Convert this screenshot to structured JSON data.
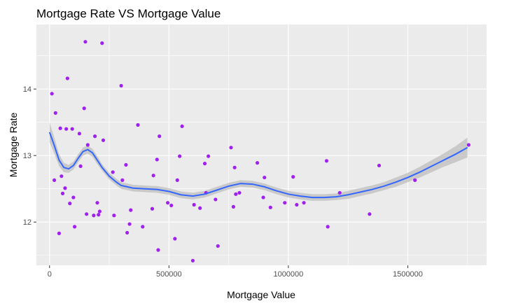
{
  "colors": {
    "panel_bg": "#EBEBEB",
    "grid_major": "#FFFFFF",
    "point": "#A020F0",
    "smooth_line": "#3366FF",
    "ribbon": "#BEBEBE",
    "tick_text": "#4D4D4D"
  },
  "chart_data": {
    "type": "scatter",
    "title": "Mortgage Rate VS Mortgage Value",
    "xlabel": "Mortgage Value",
    "ylabel": "Mortgage Rate",
    "xlim": [
      -55000,
      1830000
    ],
    "ylim": [
      11.35,
      14.97
    ],
    "x_ticks": [
      0,
      500000,
      1000000,
      1500000
    ],
    "x_tick_labels": [
      "0",
      "500000",
      "1000000",
      "1500000"
    ],
    "y_ticks": [
      12,
      13,
      14
    ],
    "y_tick_labels": [
      "12",
      "13",
      "14"
    ],
    "grid": true,
    "points": [
      {
        "x": 10000,
        "y": 13.93
      },
      {
        "x": 25000,
        "y": 13.64
      },
      {
        "x": 20000,
        "y": 12.63
      },
      {
        "x": 40000,
        "y": 11.83
      },
      {
        "x": 45000,
        "y": 13.41
      },
      {
        "x": 50000,
        "y": 12.69
      },
      {
        "x": 55000,
        "y": 12.43
      },
      {
        "x": 65000,
        "y": 12.51
      },
      {
        "x": 70000,
        "y": 13.4
      },
      {
        "x": 75000,
        "y": 14.16
      },
      {
        "x": 85000,
        "y": 12.28
      },
      {
        "x": 95000,
        "y": 13.4
      },
      {
        "x": 100000,
        "y": 12.37
      },
      {
        "x": 105000,
        "y": 11.93
      },
      {
        "x": 125000,
        "y": 13.33
      },
      {
        "x": 130000,
        "y": 12.84
      },
      {
        "x": 145000,
        "y": 13.71
      },
      {
        "x": 150000,
        "y": 14.71
      },
      {
        "x": 155000,
        "y": 12.12
      },
      {
        "x": 160000,
        "y": 13.16
      },
      {
        "x": 185000,
        "y": 12.1
      },
      {
        "x": 190000,
        "y": 13.29
      },
      {
        "x": 200000,
        "y": 12.29
      },
      {
        "x": 205000,
        "y": 12.11
      },
      {
        "x": 210000,
        "y": 12.16
      },
      {
        "x": 220000,
        "y": 14.69
      },
      {
        "x": 225000,
        "y": 13.23
      },
      {
        "x": 265000,
        "y": 12.75
      },
      {
        "x": 270000,
        "y": 12.1
      },
      {
        "x": 300000,
        "y": 14.05
      },
      {
        "x": 305000,
        "y": 12.63
      },
      {
        "x": 320000,
        "y": 12.86
      },
      {
        "x": 325000,
        "y": 11.84
      },
      {
        "x": 335000,
        "y": 11.97
      },
      {
        "x": 340000,
        "y": 12.18
      },
      {
        "x": 370000,
        "y": 13.46
      },
      {
        "x": 390000,
        "y": 11.93
      },
      {
        "x": 430000,
        "y": 12.2
      },
      {
        "x": 435000,
        "y": 12.7
      },
      {
        "x": 450000,
        "y": 12.94
      },
      {
        "x": 455000,
        "y": 11.58
      },
      {
        "x": 460000,
        "y": 13.29
      },
      {
        "x": 495000,
        "y": 12.29
      },
      {
        "x": 510000,
        "y": 12.25
      },
      {
        "x": 525000,
        "y": 11.75
      },
      {
        "x": 535000,
        "y": 12.63
      },
      {
        "x": 545000,
        "y": 12.99
      },
      {
        "x": 555000,
        "y": 13.44
      },
      {
        "x": 600000,
        "y": 11.42
      },
      {
        "x": 605000,
        "y": 12.26
      },
      {
        "x": 630000,
        "y": 12.21
      },
      {
        "x": 650000,
        "y": 12.88
      },
      {
        "x": 655000,
        "y": 12.44
      },
      {
        "x": 665000,
        "y": 12.99
      },
      {
        "x": 695000,
        "y": 12.34
      },
      {
        "x": 705000,
        "y": 11.64
      },
      {
        "x": 760000,
        "y": 13.12
      },
      {
        "x": 770000,
        "y": 12.23
      },
      {
        "x": 775000,
        "y": 12.82
      },
      {
        "x": 780000,
        "y": 12.42
      },
      {
        "x": 795000,
        "y": 12.44
      },
      {
        "x": 870000,
        "y": 12.89
      },
      {
        "x": 895000,
        "y": 12.37
      },
      {
        "x": 900000,
        "y": 12.67
      },
      {
        "x": 925000,
        "y": 12.22
      },
      {
        "x": 985000,
        "y": 12.29
      },
      {
        "x": 1020000,
        "y": 12.68
      },
      {
        "x": 1035000,
        "y": 12.26
      },
      {
        "x": 1065000,
        "y": 12.29
      },
      {
        "x": 1160000,
        "y": 12.92
      },
      {
        "x": 1165000,
        "y": 11.93
      },
      {
        "x": 1215000,
        "y": 12.44
      },
      {
        "x": 1340000,
        "y": 12.12
      },
      {
        "x": 1380000,
        "y": 12.85
      },
      {
        "x": 1530000,
        "y": 12.63
      },
      {
        "x": 1755000,
        "y": 13.16
      }
    ],
    "smooth": {
      "x": [
        0,
        20000,
        40000,
        60000,
        80000,
        100000,
        120000,
        140000,
        160000,
        180000,
        200000,
        220000,
        250000,
        280000,
        300000,
        350000,
        400000,
        450000,
        500000,
        550000,
        600000,
        650000,
        700000,
        750000,
        800000,
        850000,
        900000,
        950000,
        1000000,
        1050000,
        1100000,
        1150000,
        1200000,
        1250000,
        1300000,
        1350000,
        1400000,
        1450000,
        1500000,
        1550000,
        1600000,
        1650000,
        1700000,
        1750000
      ],
      "y": [
        13.35,
        13.15,
        12.93,
        12.82,
        12.8,
        12.85,
        12.96,
        13.06,
        13.09,
        13.04,
        12.93,
        12.82,
        12.69,
        12.6,
        12.55,
        12.51,
        12.5,
        12.49,
        12.46,
        12.41,
        12.39,
        12.42,
        12.48,
        12.54,
        12.58,
        12.57,
        12.53,
        12.47,
        12.42,
        12.39,
        12.37,
        12.37,
        12.38,
        12.41,
        12.45,
        12.49,
        12.54,
        12.6,
        12.67,
        12.75,
        12.84,
        12.93,
        13.02,
        13.12
      ],
      "ribbon_halfwidth": [
        0.15,
        0.12,
        0.09,
        0.07,
        0.06,
        0.06,
        0.06,
        0.06,
        0.06,
        0.06,
        0.06,
        0.05,
        0.05,
        0.05,
        0.05,
        0.05,
        0.05,
        0.05,
        0.05,
        0.05,
        0.05,
        0.05,
        0.05,
        0.05,
        0.05,
        0.05,
        0.05,
        0.05,
        0.05,
        0.05,
        0.05,
        0.05,
        0.05,
        0.06,
        0.06,
        0.06,
        0.06,
        0.07,
        0.07,
        0.08,
        0.09,
        0.1,
        0.12,
        0.15
      ]
    }
  }
}
